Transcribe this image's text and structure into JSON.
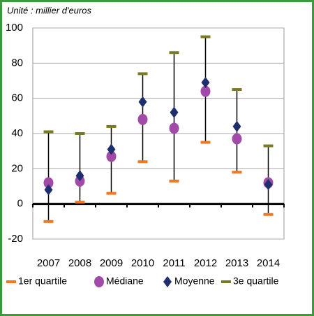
{
  "chart_data": {
    "type": "range",
    "subtitle": "Unité : millier d'euros",
    "categories": [
      "2007",
      "2008",
      "2009",
      "2010",
      "2011",
      "2012",
      "2013",
      "2014"
    ],
    "series": [
      {
        "name": "1er quartile",
        "color": "#f07820",
        "marker": "dash",
        "values": [
          -10,
          1,
          6,
          24,
          13,
          35,
          18,
          -6
        ]
      },
      {
        "name": "Médiane",
        "color": "#a24aa8",
        "marker": "circle",
        "values": [
          12,
          13,
          27,
          48,
          43,
          64,
          37,
          12
        ]
      },
      {
        "name": "Moyenne",
        "color": "#1f2f6e",
        "marker": "diamond",
        "values": [
          8,
          16,
          31,
          58,
          52,
          69,
          44,
          11
        ]
      },
      {
        "name": "3e quartile",
        "color": "#7a7a22",
        "marker": "dash",
        "values": [
          41,
          40,
          44,
          74,
          86,
          95,
          65,
          33
        ]
      }
    ],
    "ylim": [
      -20,
      100
    ],
    "yticks": [
      -20,
      0,
      20,
      40,
      60,
      80,
      100
    ],
    "grid": true
  }
}
